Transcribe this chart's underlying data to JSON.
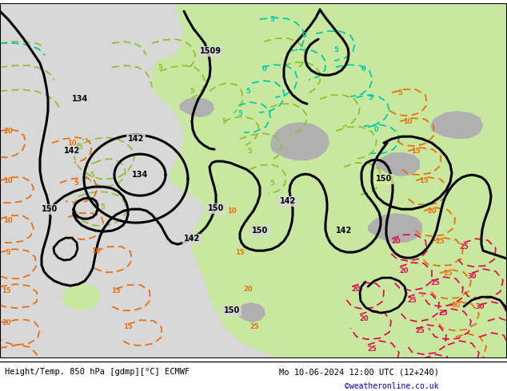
{
  "title_left": "Height/Temp. 850 hPa [gdmp][°C] ECMWF",
  "title_right": "Mo 10-06-2024 12:00 UTC (12+240)",
  "credit": "©weatheronline.co.uk",
  "text_color": "#000000",
  "credit_color": "#0000cc",
  "bottom_bar_color": "#ffffff",
  "fig_width": 6.34,
  "fig_height": 4.9,
  "dpi": 100,
  "map_ocean_color": "#e8e8e8",
  "map_land_color": "#c8e8a0",
  "map_mountain_color": "#b8b8b8",
  "map_land_light_color": "#d8f0b0"
}
